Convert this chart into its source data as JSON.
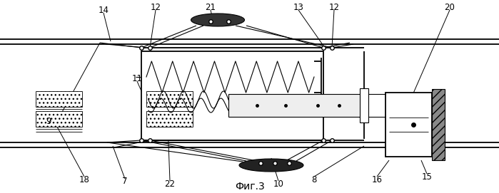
{
  "title": "Фиг.3",
  "bg_color": "#ffffff",
  "figsize": [
    6.99,
    2.71
  ],
  "dpi": 100
}
